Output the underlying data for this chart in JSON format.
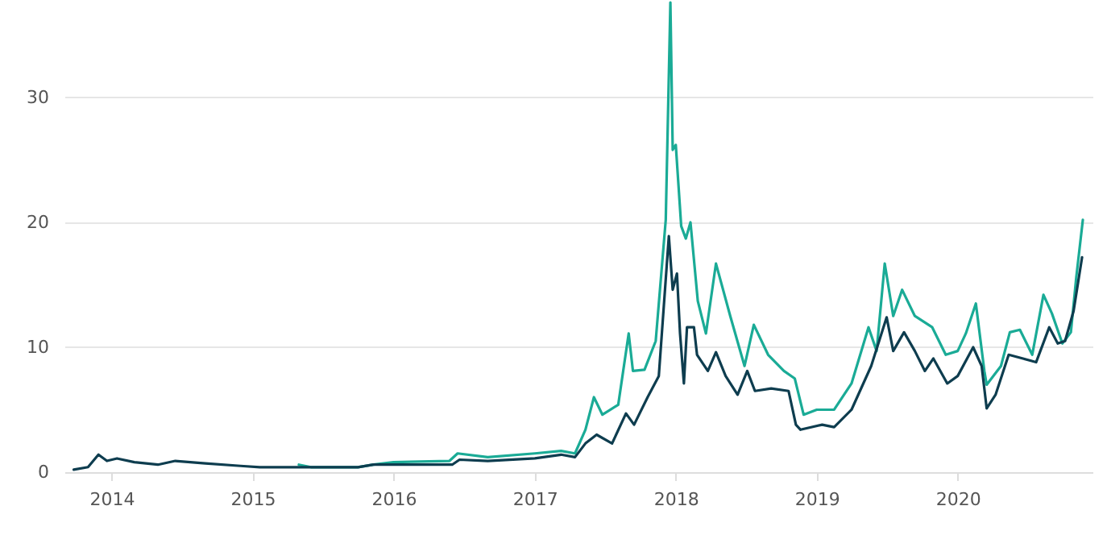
{
  "chart_data": {
    "type": "line",
    "xlim": [
      "2013-09-01",
      "2020-12-15"
    ],
    "xticks": [
      "2014",
      "2015",
      "2016",
      "2017",
      "2018",
      "2019",
      "2020"
    ],
    "ylim": [
      0,
      37.8
    ],
    "yticks": [
      0,
      10,
      20,
      30
    ],
    "grid": "y",
    "line_style": "solid",
    "marker": "none",
    "series": [
      {
        "color": "#1aab96",
        "x": [
          "2015-05-01",
          "2015-06-01",
          "2015-10-01",
          "2015-11-10",
          "2016-01-01",
          "2016-05-25",
          "2016-06-15",
          "2016-09-01",
          "2017-01-01",
          "2017-03-10",
          "2017-04-15",
          "2017-05-12",
          "2017-06-03",
          "2017-06-25",
          "2017-08-05",
          "2017-09-01",
          "2017-09-12",
          "2017-10-12",
          "2017-11-10",
          "2017-12-06",
          "2017-12-18",
          "2017-12-24",
          "2018-01-01",
          "2018-01-15",
          "2018-01-27",
          "2018-02-08",
          "2018-02-27",
          "2018-03-20",
          "2018-04-15",
          "2018-05-22",
          "2018-06-28",
          "2018-07-22",
          "2018-08-28",
          "2018-10-08",
          "2018-11-05",
          "2018-11-28",
          "2019-01-01",
          "2019-02-15",
          "2019-04-01",
          "2019-05-15",
          "2019-06-05",
          "2019-06-26",
          "2019-07-18",
          "2019-08-10",
          "2019-09-12",
          "2019-10-27",
          "2019-12-01",
          "2020-01-01",
          "2020-01-22",
          "2020-02-17",
          "2020-03-10",
          "2020-03-16",
          "2020-04-22",
          "2020-05-15",
          "2020-06-10",
          "2020-07-12",
          "2020-08-10",
          "2020-09-01",
          "2020-09-28",
          "2020-10-20",
          "2020-11-03",
          "2020-11-20"
        ],
        "values": [
          0.6,
          0.4,
          0.4,
          0.6,
          0.8,
          0.9,
          1.5,
          1.2,
          1.5,
          1.7,
          1.5,
          3.4,
          6.0,
          4.6,
          5.4,
          11.1,
          8.1,
          8.2,
          10.5,
          20.2,
          37.6,
          25.8,
          26.2,
          19.7,
          18.7,
          20.0,
          13.7,
          11.1,
          16.7,
          12.5,
          8.5,
          11.8,
          9.4,
          8.1,
          7.5,
          4.6,
          5.0,
          5.0,
          7.1,
          11.6,
          9.7,
          16.7,
          12.5,
          14.6,
          12.5,
          11.6,
          9.4,
          9.7,
          11.1,
          13.5,
          8.1,
          7.0,
          8.5,
          11.2,
          11.4,
          9.4,
          14.2,
          12.7,
          10.3,
          11.2,
          15.6,
          20.2
        ]
      },
      {
        "color": "#0e3d4f",
        "x": [
          "2013-09-25",
          "2013-11-01",
          "2013-11-28",
          "2013-12-20",
          "2014-01-15",
          "2014-03-01",
          "2014-05-01",
          "2014-06-15",
          "2014-09-01",
          "2014-12-01",
          "2015-01-20",
          "2015-06-01",
          "2015-10-01",
          "2015-11-10",
          "2016-06-01",
          "2016-06-20",
          "2016-09-01",
          "2017-01-01",
          "2017-03-10",
          "2017-04-15",
          "2017-05-12",
          "2017-06-10",
          "2017-07-20",
          "2017-08-25",
          "2017-09-15",
          "2017-10-20",
          "2017-11-18",
          "2017-12-14",
          "2017-12-24",
          "2018-01-04",
          "2018-01-12",
          "2018-01-22",
          "2018-01-30",
          "2018-02-17",
          "2018-02-25",
          "2018-03-25",
          "2018-04-15",
          "2018-05-10",
          "2018-06-10",
          "2018-07-05",
          "2018-07-25",
          "2018-09-05",
          "2018-10-20",
          "2018-11-08",
          "2018-11-20",
          "2019-01-15",
          "2019-02-15",
          "2019-04-01",
          "2019-05-22",
          "2019-07-01",
          "2019-07-18",
          "2019-08-15",
          "2019-09-12",
          "2019-10-08",
          "2019-10-30",
          "2019-12-05",
          "2020-01-01",
          "2020-02-10",
          "2020-03-03",
          "2020-03-16",
          "2020-04-08",
          "2020-05-12",
          "2020-06-18",
          "2020-07-22",
          "2020-08-25",
          "2020-09-16",
          "2020-10-05",
          "2020-10-27",
          "2020-11-18"
        ],
        "values": [
          0.2,
          0.4,
          1.4,
          0.9,
          1.1,
          0.8,
          0.6,
          0.9,
          0.7,
          0.5,
          0.4,
          0.4,
          0.4,
          0.6,
          0.6,
          1.0,
          0.9,
          1.1,
          1.4,
          1.2,
          2.3,
          3.0,
          2.3,
          4.7,
          3.8,
          6.0,
          7.7,
          18.9,
          14.6,
          15.9,
          11.1,
          7.1,
          11.6,
          11.6,
          9.4,
          8.1,
          9.6,
          7.7,
          6.2,
          8.1,
          6.5,
          6.7,
          6.5,
          3.8,
          3.4,
          3.8,
          3.6,
          5.0,
          8.5,
          12.4,
          9.7,
          11.2,
          9.7,
          8.1,
          9.1,
          7.1,
          7.7,
          10.0,
          8.5,
          5.1,
          6.2,
          9.4,
          9.1,
          8.8,
          11.6,
          10.3,
          10.5,
          12.9,
          17.2
        ]
      }
    ]
  }
}
